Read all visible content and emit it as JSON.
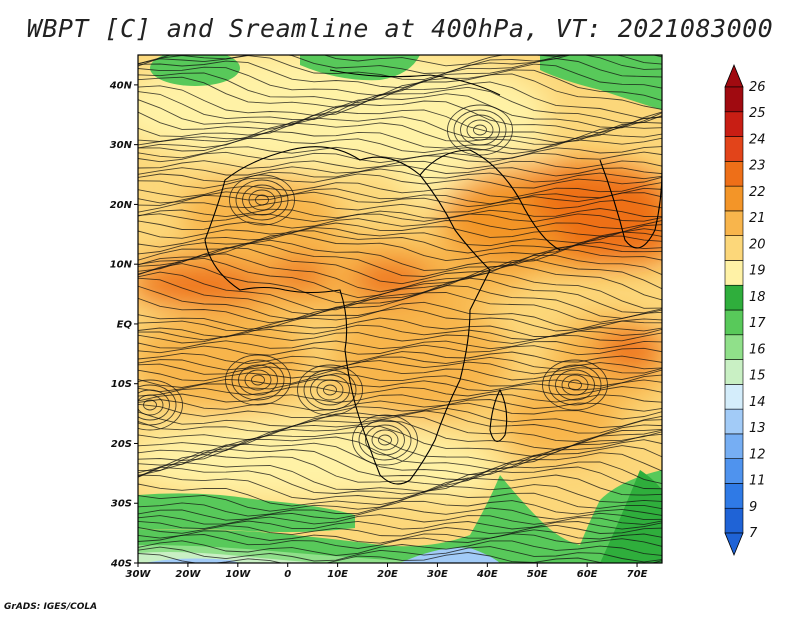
{
  "title": "WBPT [C] and Sreamline at 400hPa, VT: 2021083000",
  "credit": "GrADS: IGES/COLA",
  "map": {
    "lon_range": [
      -30,
      75
    ],
    "lat_range": [
      -40,
      45
    ],
    "lat_ticks": [
      {
        "value": 40,
        "label": "40N"
      },
      {
        "value": 30,
        "label": "30N"
      },
      {
        "value": 20,
        "label": "20N"
      },
      {
        "value": 10,
        "label": "10N"
      },
      {
        "value": 0,
        "label": "EQ"
      },
      {
        "value": -10,
        "label": "10S"
      },
      {
        "value": -20,
        "label": "20S"
      },
      {
        "value": -30,
        "label": "30S"
      },
      {
        "value": -40,
        "label": "40S"
      }
    ],
    "lon_ticks": [
      {
        "value": -30,
        "label": "30W"
      },
      {
        "value": -20,
        "label": "20W"
      },
      {
        "value": -10,
        "label": "10W"
      },
      {
        "value": 0,
        "label": "0"
      },
      {
        "value": 10,
        "label": "10E"
      },
      {
        "value": 20,
        "label": "20E"
      },
      {
        "value": 30,
        "label": "30E"
      },
      {
        "value": 40,
        "label": "40E"
      },
      {
        "value": 50,
        "label": "50E"
      },
      {
        "value": 60,
        "label": "60E"
      },
      {
        "value": 70,
        "label": "70E"
      }
    ]
  },
  "colorbar": {
    "labels": [
      "7",
      "9",
      "11",
      "12",
      "13",
      "14",
      "15",
      "16",
      "17",
      "18",
      "19",
      "20",
      "21",
      "22",
      "23",
      "24",
      "25",
      "26"
    ],
    "colors": [
      "#1f63d6",
      "#2f7ae6",
      "#4f93ee",
      "#76aef3",
      "#a2cbf7",
      "#d4edfb",
      "#c9f0c4",
      "#90e08a",
      "#58c95a",
      "#2fae3c",
      "#fff2a6",
      "#fcd77a",
      "#f8b54c",
      "#f39528",
      "#ee6f18",
      "#e2441a",
      "#c81e14",
      "#a00a10"
    ]
  }
}
